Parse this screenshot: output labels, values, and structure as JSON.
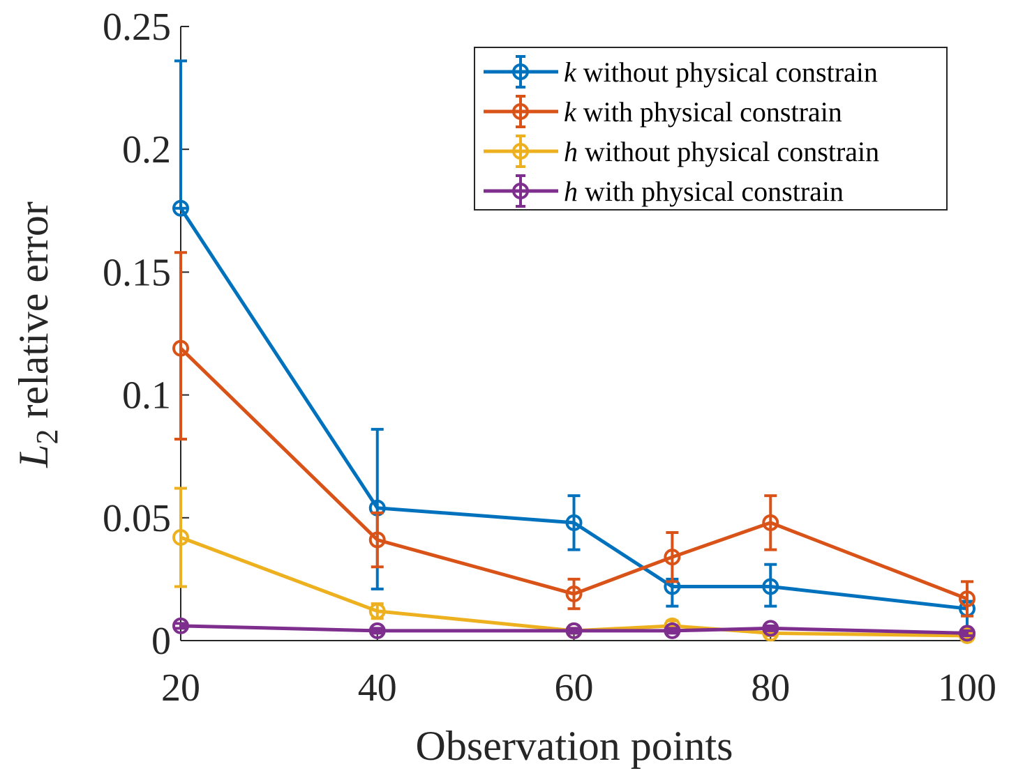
{
  "chart_data": {
    "type": "line",
    "title": "",
    "xlabel": "Observation points",
    "ylabel": {
      "var": "L",
      "sub": "2",
      "text": " relative error"
    },
    "xlim": [
      20,
      100
    ],
    "ylim": [
      0,
      0.25
    ],
    "x": [
      20,
      40,
      60,
      70,
      80,
      100
    ],
    "xticks": [
      20,
      40,
      60,
      80,
      100
    ],
    "xtick_labels": [
      "20",
      "40",
      "60",
      "80",
      "100"
    ],
    "yticks": [
      0,
      0.05,
      0.1,
      0.15,
      0.2,
      0.25
    ],
    "ytick_labels": [
      "0",
      "0.05",
      "0.1",
      "0.15",
      "0.2",
      "0.25"
    ],
    "grid": false,
    "legend_position": "top-right",
    "series": [
      {
        "name": "k without physical constrain",
        "var": "k",
        "label": " without physical constrain",
        "color": "#0072BD",
        "values": [
          0.176,
          0.054,
          0.048,
          0.022,
          0.022,
          0.013
        ],
        "err_low": [
          0.176,
          0.021,
          0.037,
          0.014,
          0.014,
          0.004
        ],
        "err_high": [
          0.236,
          0.086,
          0.059,
          0.025,
          0.031,
          0.016
        ]
      },
      {
        "name": "k with physical constrain",
        "var": "k",
        "label": " with physical constrain",
        "color": "#D95319",
        "values": [
          0.119,
          0.041,
          0.019,
          0.034,
          0.048,
          0.017
        ],
        "err_low": [
          0.082,
          0.03,
          0.013,
          0.024,
          0.037,
          0.01
        ],
        "err_high": [
          0.158,
          0.052,
          0.025,
          0.044,
          0.059,
          0.024
        ]
      },
      {
        "name": "h without physical constrain",
        "var": "h",
        "label": " without physical constrain",
        "color": "#EDB120",
        "values": [
          0.042,
          0.012,
          0.004,
          0.006,
          0.003,
          0.002
        ],
        "err_low": [
          0.022,
          0.009,
          0.003,
          0.004,
          0.002,
          0.001
        ],
        "err_high": [
          0.062,
          0.015,
          0.005,
          0.008,
          0.004,
          0.003
        ]
      },
      {
        "name": "h with physical constrain",
        "var": "h",
        "label": " with physical constrain",
        "color": "#7E2F8E",
        "values": [
          0.006,
          0.004,
          0.004,
          0.004,
          0.005,
          0.003
        ],
        "err_low": [
          0.005,
          0.003,
          0.003,
          0.003,
          0.004,
          0.002
        ],
        "err_high": [
          0.007,
          0.005,
          0.005,
          0.005,
          0.006,
          0.004
        ]
      }
    ]
  }
}
